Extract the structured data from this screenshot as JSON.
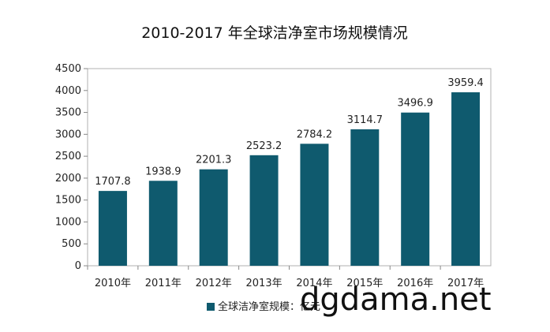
{
  "chart_data": {
    "type": "bar",
    "title": "2010-2017 年全球洁净室市场规模情况",
    "categories": [
      "2010年",
      "2011年",
      "2012年",
      "2013年",
      "2014年",
      "2015年",
      "2016年",
      "2017年"
    ],
    "series": [
      {
        "name": "全球洁净室规模：亿元",
        "values": [
          1707.8,
          1938.9,
          2201.3,
          2523.2,
          2784.2,
          3114.7,
          3496.9,
          3959.4
        ],
        "value_labels": [
          "1707.8",
          "1938.9",
          "2201.3",
          "2523.2",
          "2784.2",
          "3114.7",
          "3496.9",
          "3959.4"
        ],
        "color": "#0f5a6e"
      }
    ],
    "ylim": [
      0,
      4500
    ],
    "yticks": [
      "0",
      "500",
      "1000",
      "1500",
      "2000",
      "2500",
      "3000",
      "3500",
      "4000",
      "4500"
    ],
    "grid": false,
    "legend_position": "bottom"
  },
  "watermark": {
    "text": "dgdama.net"
  }
}
